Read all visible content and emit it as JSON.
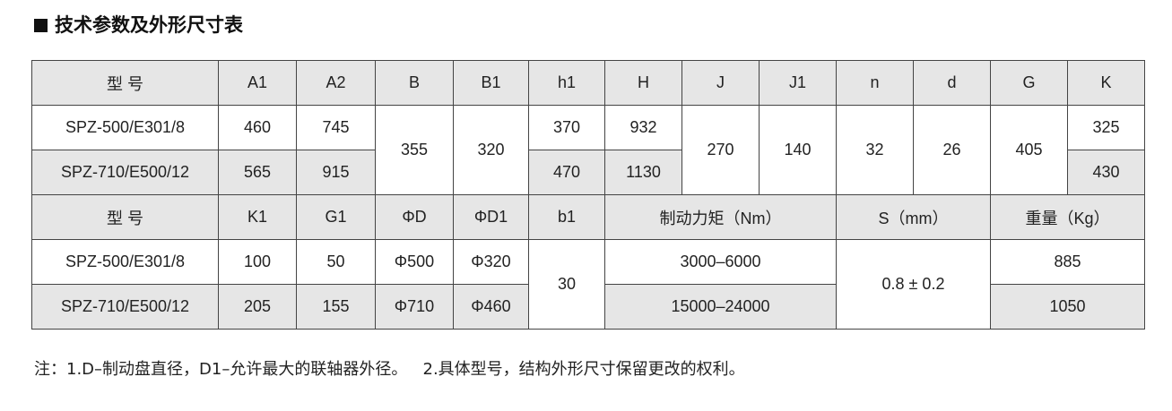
{
  "title": "技术参数及外形尺寸表",
  "colors": {
    "header_bg": "#e6e6e6",
    "alt_row_bg": "#e6e6e6",
    "border": "#444444"
  },
  "table1": {
    "headers": [
      "型 号",
      "A1",
      "A2",
      "B",
      "B1",
      "h1",
      "H",
      "J",
      "J1",
      "n",
      "d",
      "G",
      "K"
    ],
    "rows": [
      {
        "model": "SPZ-500/E301/8",
        "A1": "460",
        "A2": "745",
        "h1": "370",
        "H": "932",
        "K": "325"
      },
      {
        "model": "SPZ-710/E500/12",
        "A1": "565",
        "A2": "915",
        "h1": "470",
        "H": "1130",
        "K": "430"
      }
    ],
    "shared": {
      "B": "355",
      "B1": "320",
      "J": "270",
      "J1": "140",
      "n": "32",
      "d": "26",
      "G": "405"
    }
  },
  "table2": {
    "headers": [
      "型 号",
      "K1",
      "G1",
      "ΦD",
      "ΦD1",
      "b1",
      "制动力矩（Nm）",
      "S（mm）",
      "重量（Kg）"
    ],
    "rows": [
      {
        "model": "SPZ-500/E301/8",
        "K1": "100",
        "G1": "50",
        "D": "Φ500",
        "D1": "Φ320",
        "torque": "3000–6000",
        "weight": "885"
      },
      {
        "model": "SPZ-710/E500/12",
        "K1": "205",
        "G1": "155",
        "D": "Φ710",
        "D1": "Φ460",
        "torque": "15000–24000",
        "weight": "1050"
      }
    ],
    "shared": {
      "b1": "30",
      "S": "0.8 ± 0.2"
    }
  },
  "note": "注：1.D–制动盘直径，D1–允许最大的联轴器外径。   2.具体型号，结构外形尺寸保留更改的权利。"
}
